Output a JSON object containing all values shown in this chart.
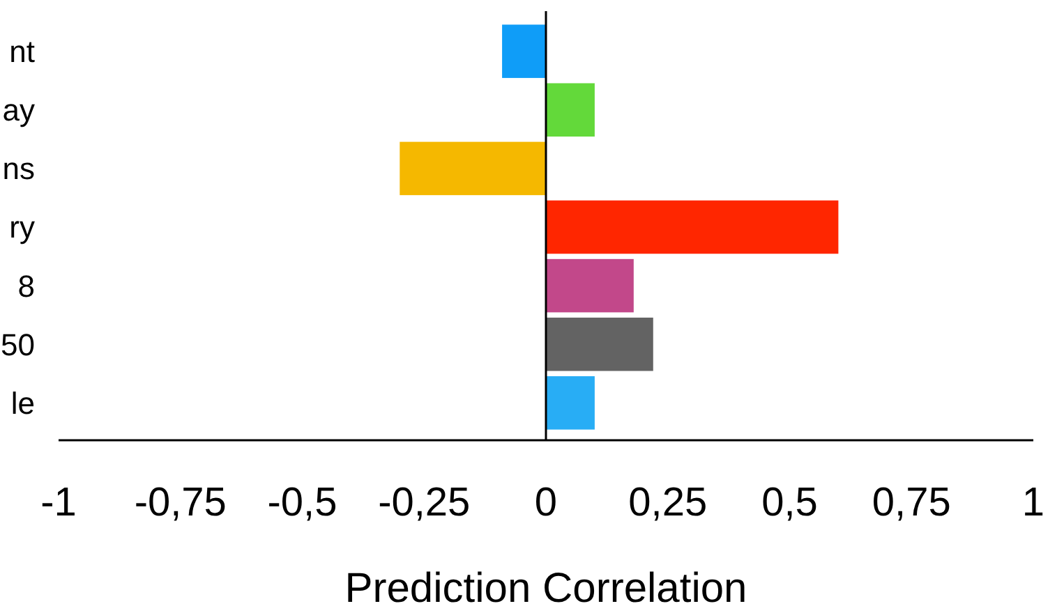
{
  "chart_data": {
    "type": "bar",
    "orientation": "horizontal",
    "xlabel": "Prediction Correlation",
    "categories": [
      "nt",
      "ay",
      "ns",
      "ry",
      "8",
      "50",
      "le"
    ],
    "values": [
      -0.09,
      0.1,
      -0.3,
      0.6,
      0.18,
      0.22,
      0.1
    ],
    "colors": [
      "#0f9df8",
      "#63d93a",
      "#f5b800",
      "#ff2600",
      "#c2488a",
      "#636363",
      "#28adf5"
    ],
    "xlim": [
      -1,
      1
    ],
    "xticks": [
      -1,
      {
        "value": -0.75,
        "label": "-0,75"
      },
      {
        "value": -0.5,
        "label": "-0,5"
      },
      {
        "value": -0.25,
        "label": "-0,25"
      },
      0,
      {
        "value": 0.25,
        "label": "0,25"
      },
      {
        "value": 0.5,
        "label": "0,5"
      },
      {
        "value": 0.75,
        "label": "0,75"
      },
      1
    ]
  }
}
